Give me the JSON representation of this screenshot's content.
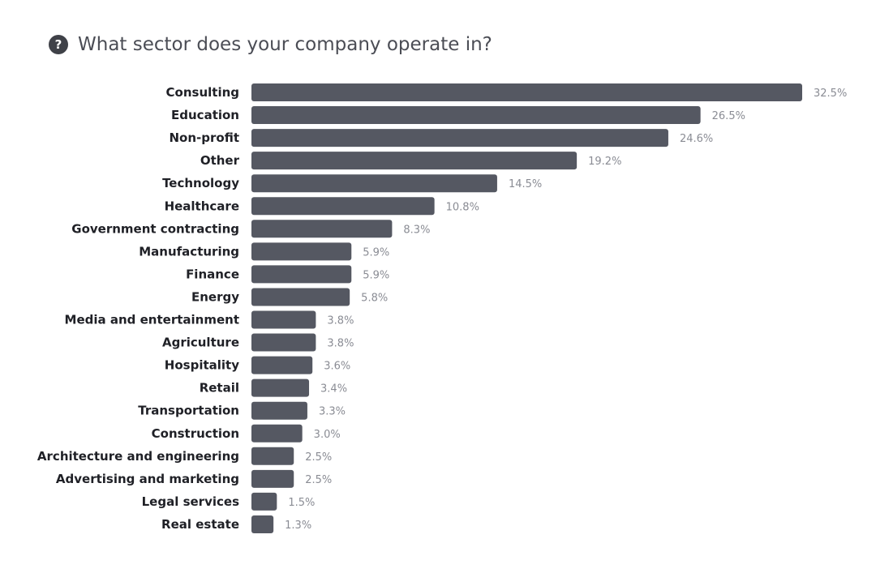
{
  "question": {
    "icon": "help-circle-icon",
    "text": "What sector does your company operate in?"
  },
  "colors": {
    "bar": "#555862",
    "icon": "#3f4148"
  },
  "chart_data": {
    "type": "bar",
    "orientation": "horizontal",
    "title": "",
    "xlabel": "",
    "ylabel": "",
    "unit": "%",
    "xlim": [
      0,
      32.5
    ],
    "grid": false,
    "categories": [
      "Consulting",
      "Education",
      "Non-profit",
      "Other",
      "Technology",
      "Healthcare",
      "Government contracting",
      "Manufacturing",
      "Finance",
      "Energy",
      "Media and entertainment",
      "Agriculture",
      "Hospitality",
      "Retail",
      "Transportation",
      "Construction",
      "Architecture and engineering",
      "Advertising and marketing",
      "Legal services",
      "Real estate"
    ],
    "values": [
      32.5,
      26.5,
      24.6,
      19.2,
      14.5,
      10.8,
      8.3,
      5.9,
      5.9,
      5.8,
      3.8,
      3.8,
      3.6,
      3.4,
      3.3,
      3.0,
      2.5,
      2.5,
      1.5,
      1.3
    ],
    "value_labels": [
      "32.5%",
      "26.5%",
      "24.6%",
      "19.2%",
      "14.5%",
      "10.8%",
      "8.3%",
      "5.9%",
      "5.9%",
      "5.8%",
      "3.8%",
      "3.8%",
      "3.6%",
      "3.4%",
      "3.3%",
      "3.0%",
      "2.5%",
      "2.5%",
      "1.5%",
      "1.3%"
    ]
  }
}
